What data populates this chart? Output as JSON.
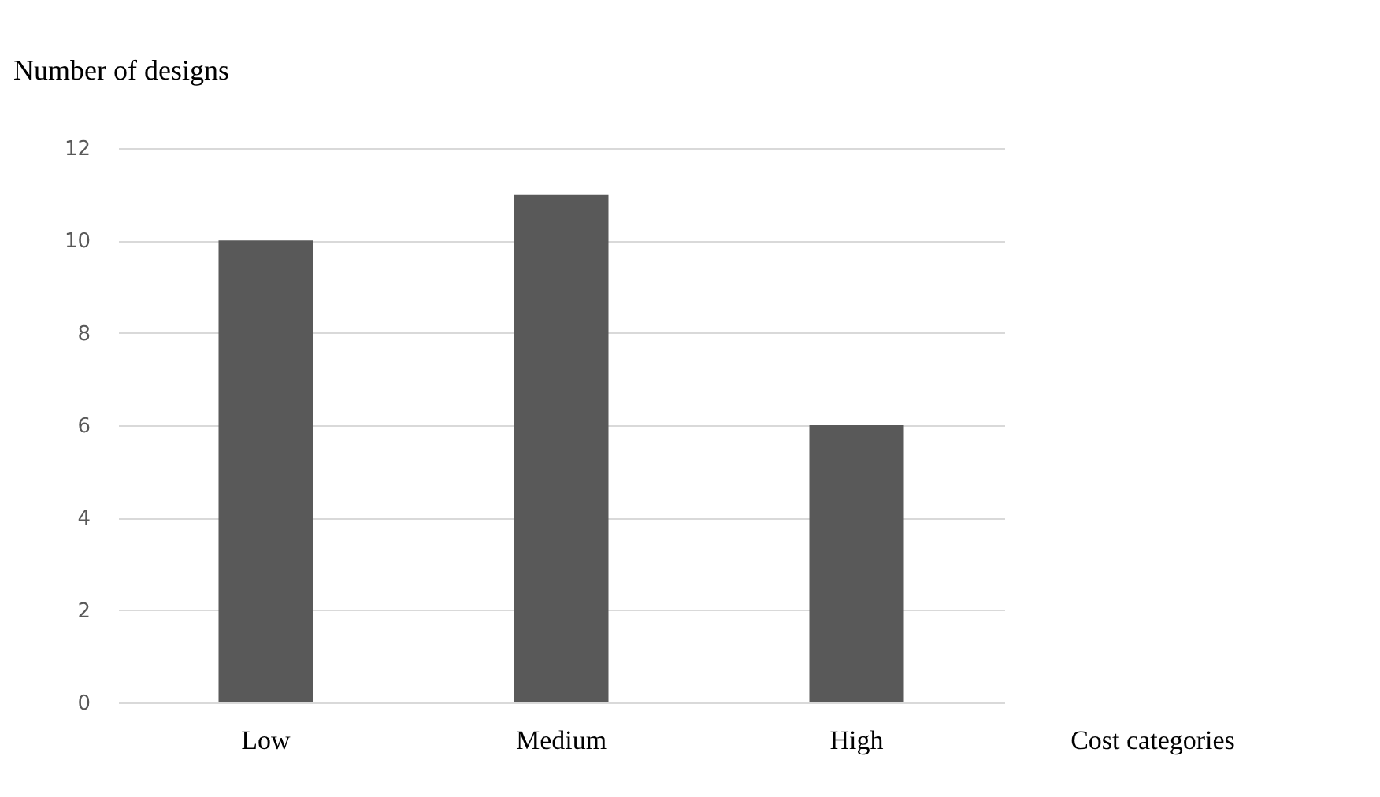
{
  "chart_data": {
    "type": "bar",
    "ylabel": "Number of designs",
    "xlabel": "Cost categories",
    "categories": [
      "Low",
      "Medium",
      "High"
    ],
    "values": [
      10,
      11,
      6
    ],
    "color": "#595959",
    "ylim": [
      0,
      12
    ],
    "yticks": [
      0,
      2,
      4,
      6,
      8,
      10,
      12
    ],
    "grid": "y"
  }
}
